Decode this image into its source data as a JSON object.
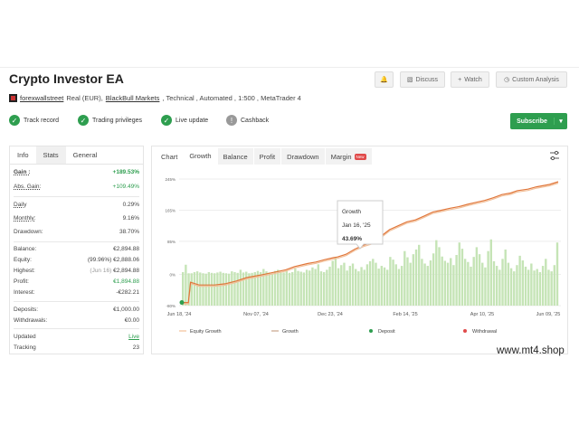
{
  "header": {
    "title": "Crypto Investor EA",
    "buttons": {
      "bell": "",
      "discuss": "Discuss",
      "watch": "Watch",
      "custom": "Custom Analysis"
    },
    "meta": {
      "user": "forexwallstreet",
      "account": "Real (EUR),",
      "broker": "BlackBull Markets",
      "rest": ", Technical , Automated , 1:500 , MetaTrader 4"
    },
    "badges": [
      "Track record",
      "Trading privileges",
      "Live update",
      "Cashback"
    ],
    "subscribe": "Subscribe"
  },
  "stats": {
    "tabs": [
      "Info",
      "Stats",
      "General"
    ],
    "rows": [
      {
        "k": "Gain :",
        "v": "+189.53%"
      },
      {
        "k": "Abs. Gain:",
        "v": "+109.49%"
      },
      {
        "k": "Daily",
        "v": "0.29%"
      },
      {
        "k": "Monthly:",
        "v": "9.16%"
      },
      {
        "k": "Drawdown:",
        "v": "38.70%"
      },
      {
        "k": "Balance:",
        "v": "€2,894.88"
      },
      {
        "k": "Equity:",
        "note": "(99.96%)",
        "v": "€2,888.06"
      },
      {
        "k": "Highest:",
        "note": "(Jun 16)",
        "v": "€2,894.88"
      },
      {
        "k": "Profit:",
        "v": "€1,894.88"
      },
      {
        "k": "Interest:",
        "v": "-€282.21"
      },
      {
        "k": "Deposits:",
        "v": "€1,000.00"
      },
      {
        "k": "Withdrawals:",
        "v": "€0.00"
      },
      {
        "k": "Updated",
        "v": "Live"
      },
      {
        "k": "Tracking",
        "v": "23"
      }
    ]
  },
  "chart_tabs": [
    "Chart",
    "Growth",
    "Balance",
    "Profit",
    "Drawdown",
    "Margin"
  ],
  "new_badge": "New",
  "tooltip": {
    "title": "Growth",
    "date": "Jan 16, '25",
    "value": "43.69%"
  },
  "chart_data": {
    "type": "line",
    "x_ticks": [
      "Jun 18, '24",
      "Nov 07, '24",
      "Dec 23, '24",
      "Feb 14, '25",
      "Apr 10, '25",
      "Jun 09, '25"
    ],
    "y_ticks": [
      "245%",
      "165%",
      "85%",
      "0%",
      "-80%"
    ],
    "ylim": [
      -80,
      245
    ],
    "legend": [
      "Equity Growth",
      "Growth",
      "Deposit",
      "Withdrawal"
    ],
    "colors": {
      "equity": "#f2c09a",
      "growth": "#e0763a",
      "bars": "#c5e4b6",
      "deposit": "#2e9e4f",
      "withdrawal": "#e04a4a"
    },
    "growth": [
      [
        0,
        -72
      ],
      [
        0.03,
        -72
      ],
      [
        0.04,
        -20
      ],
      [
        0.08,
        -27
      ],
      [
        0.15,
        -27
      ],
      [
        0.2,
        -24
      ],
      [
        0.25,
        -17
      ],
      [
        0.3,
        -8
      ],
      [
        0.36,
        -2
      ],
      [
        0.42,
        5
      ],
      [
        0.48,
        12
      ],
      [
        0.52,
        20
      ],
      [
        0.58,
        28
      ],
      [
        0.62,
        32
      ],
      [
        0.66,
        38
      ],
      [
        0.7,
        43
      ],
      [
        0.72,
        45
      ],
      [
        0.76,
        52
      ],
      [
        0.8,
        65
      ],
      [
        0.84,
        75
      ],
      [
        0.88,
        82
      ],
      [
        0.9,
        92
      ],
      [
        0.93,
        102
      ],
      [
        0.96,
        115
      ],
      [
        1.0,
        125
      ],
      [
        1.04,
        135
      ],
      [
        1.08,
        140
      ],
      [
        1.12,
        150
      ],
      [
        1.16,
        160
      ],
      [
        1.2,
        165
      ],
      [
        1.24,
        170
      ],
      [
        1.28,
        174
      ],
      [
        1.32,
        180
      ],
      [
        1.36,
        185
      ],
      [
        1.4,
        190
      ],
      [
        1.44,
        197
      ],
      [
        1.48,
        205
      ],
      [
        1.52,
        209
      ],
      [
        1.55,
        215
      ],
      [
        1.6,
        219
      ],
      [
        1.64,
        225
      ],
      [
        1.7,
        231
      ],
      [
        1.74,
        238
      ]
    ],
    "bars": [
      6,
      25,
      3,
      3,
      6,
      8,
      5,
      3,
      2,
      6,
      4,
      3,
      5,
      7,
      4,
      3,
      2,
      8,
      6,
      4,
      12,
      5,
      7,
      3,
      4,
      6,
      9,
      6,
      14,
      8,
      5,
      3,
      9,
      12,
      7,
      5,
      10,
      4,
      6,
      15,
      9,
      7,
      5,
      12,
      10,
      18,
      14,
      26,
      8,
      6,
      12,
      20,
      35,
      45,
      16,
      24,
      30,
      10,
      22,
      28,
      14,
      8,
      19,
      12,
      26,
      34,
      40,
      30,
      15,
      22,
      18,
      12,
      45,
      38,
      26,
      14,
      22,
      60,
      44,
      30,
      52,
      64,
      76,
      40,
      28,
      22,
      36,
      54,
      88,
      70,
      46,
      35,
      30,
      42,
      24,
      50,
      82,
      66,
      40,
      32,
      20,
      45,
      70,
      52,
      30,
      18,
      60,
      90,
      34,
      22,
      12,
      40,
      64,
      30,
      16,
      8,
      24,
      48,
      36,
      20,
      12,
      28,
      10,
      14,
      6,
      22,
      40,
      12,
      8,
      24,
      82
    ]
  },
  "watermark": "www.mt4.shop"
}
